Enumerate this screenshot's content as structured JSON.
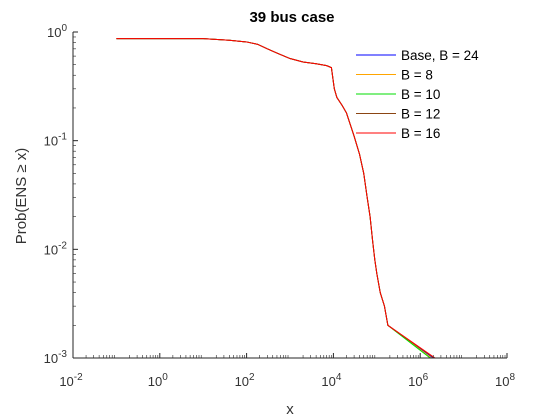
{
  "chart_data": {
    "type": "line",
    "title": "39 bus case",
    "xlabel": "x",
    "ylabel": "Prob(ENS ≥ x)",
    "x_scale": "log",
    "y_scale": "log",
    "xlim": [
      0.01,
      100000000
    ],
    "ylim": [
      0.001,
      1
    ],
    "x_ticks": [
      {
        "value": 0.01,
        "base": "10",
        "exp": "-2"
      },
      {
        "value": 1,
        "base": "10",
        "exp": "0"
      },
      {
        "value": 100,
        "base": "10",
        "exp": "2"
      },
      {
        "value": 10000,
        "base": "10",
        "exp": "4"
      },
      {
        "value": 1000000,
        "base": "10",
        "exp": "6"
      },
      {
        "value": 100000000,
        "base": "10",
        "exp": "8"
      }
    ],
    "y_ticks": [
      {
        "value": 0.001,
        "base": "10",
        "exp": "-3"
      },
      {
        "value": 0.01,
        "base": "10",
        "exp": "-2"
      },
      {
        "value": 0.1,
        "base": "10",
        "exp": "-1"
      },
      {
        "value": 1,
        "base": "10",
        "exp": "0"
      }
    ],
    "grid": false,
    "legend_position": "top-right",
    "series": [
      {
        "name": "Base, B = 24",
        "color": "#0000ff",
        "points": [
          [
            0.1,
            0.87
          ],
          [
            10,
            0.87
          ],
          [
            40,
            0.84
          ],
          [
            100,
            0.81
          ],
          [
            180,
            0.77
          ],
          [
            300,
            0.7
          ],
          [
            500,
            0.64
          ],
          [
            1000,
            0.57
          ],
          [
            2000,
            0.53
          ],
          [
            4000,
            0.51
          ],
          [
            7000,
            0.49
          ],
          [
            9000,
            0.47
          ],
          [
            10500,
            0.3
          ],
          [
            12000,
            0.25
          ],
          [
            16000,
            0.21
          ],
          [
            20000,
            0.18
          ],
          [
            30000,
            0.11
          ],
          [
            40000,
            0.075
          ],
          [
            50000,
            0.05
          ],
          [
            60000,
            0.03
          ],
          [
            70000,
            0.02
          ],
          [
            80000,
            0.012
          ],
          [
            90000,
            0.008
          ],
          [
            100000,
            0.006
          ],
          [
            120000,
            0.004
          ],
          [
            150000,
            0.003
          ],
          [
            180000,
            0.002
          ],
          [
            2000000,
            0.001
          ]
        ]
      },
      {
        "name": "B = 8",
        "color": "#ffa500",
        "points": [
          [
            0.1,
            0.87
          ],
          [
            10,
            0.87
          ],
          [
            40,
            0.84
          ],
          [
            100,
            0.81
          ],
          [
            180,
            0.77
          ],
          [
            300,
            0.7
          ],
          [
            500,
            0.64
          ],
          [
            1000,
            0.57
          ],
          [
            2000,
            0.53
          ],
          [
            4000,
            0.51
          ],
          [
            7000,
            0.49
          ],
          [
            9000,
            0.47
          ],
          [
            10500,
            0.3
          ],
          [
            12000,
            0.25
          ],
          [
            16000,
            0.21
          ],
          [
            20000,
            0.18
          ],
          [
            30000,
            0.11
          ],
          [
            40000,
            0.075
          ],
          [
            50000,
            0.05
          ],
          [
            60000,
            0.03
          ],
          [
            70000,
            0.02
          ],
          [
            80000,
            0.012
          ],
          [
            90000,
            0.008
          ],
          [
            100000,
            0.006
          ],
          [
            120000,
            0.004
          ],
          [
            150000,
            0.003
          ],
          [
            180000,
            0.002
          ],
          [
            1800000,
            0.001
          ]
        ]
      },
      {
        "name": "B = 10",
        "color": "#00dd00",
        "points": [
          [
            0.1,
            0.87
          ],
          [
            10,
            0.87
          ],
          [
            40,
            0.84
          ],
          [
            100,
            0.81
          ],
          [
            180,
            0.77
          ],
          [
            300,
            0.7
          ],
          [
            500,
            0.64
          ],
          [
            1000,
            0.57
          ],
          [
            2000,
            0.53
          ],
          [
            4000,
            0.51
          ],
          [
            7000,
            0.49
          ],
          [
            9000,
            0.47
          ],
          [
            10500,
            0.3
          ],
          [
            12000,
            0.25
          ],
          [
            16000,
            0.21
          ],
          [
            20000,
            0.18
          ],
          [
            30000,
            0.11
          ],
          [
            40000,
            0.075
          ],
          [
            50000,
            0.05
          ],
          [
            60000,
            0.03
          ],
          [
            70000,
            0.02
          ],
          [
            80000,
            0.012
          ],
          [
            90000,
            0.008
          ],
          [
            100000,
            0.006
          ],
          [
            120000,
            0.004
          ],
          [
            150000,
            0.003
          ],
          [
            180000,
            0.002
          ],
          [
            1700000,
            0.001
          ]
        ]
      },
      {
        "name": "B = 12",
        "color": "#8b4513",
        "points": [
          [
            0.1,
            0.87
          ],
          [
            10,
            0.87
          ],
          [
            40,
            0.84
          ],
          [
            100,
            0.81
          ],
          [
            180,
            0.77
          ],
          [
            300,
            0.7
          ],
          [
            500,
            0.64
          ],
          [
            1000,
            0.57
          ],
          [
            2000,
            0.53
          ],
          [
            4000,
            0.51
          ],
          [
            7000,
            0.49
          ],
          [
            9000,
            0.47
          ],
          [
            10500,
            0.3
          ],
          [
            12000,
            0.25
          ],
          [
            16000,
            0.21
          ],
          [
            20000,
            0.18
          ],
          [
            30000,
            0.11
          ],
          [
            40000,
            0.075
          ],
          [
            50000,
            0.05
          ],
          [
            60000,
            0.03
          ],
          [
            70000,
            0.02
          ],
          [
            80000,
            0.012
          ],
          [
            90000,
            0.008
          ],
          [
            100000,
            0.006
          ],
          [
            120000,
            0.004
          ],
          [
            150000,
            0.003
          ],
          [
            180000,
            0.002
          ],
          [
            2100000,
            0.001
          ]
        ]
      },
      {
        "name": "B = 16",
        "color": "#ff0000",
        "points": [
          [
            0.1,
            0.87
          ],
          [
            10,
            0.87
          ],
          [
            40,
            0.84
          ],
          [
            100,
            0.81
          ],
          [
            180,
            0.77
          ],
          [
            300,
            0.7
          ],
          [
            500,
            0.64
          ],
          [
            1000,
            0.57
          ],
          [
            2000,
            0.53
          ],
          [
            4000,
            0.51
          ],
          [
            7000,
            0.49
          ],
          [
            9000,
            0.47
          ],
          [
            10500,
            0.3
          ],
          [
            12000,
            0.25
          ],
          [
            16000,
            0.21
          ],
          [
            20000,
            0.18
          ],
          [
            30000,
            0.11
          ],
          [
            40000,
            0.075
          ],
          [
            50000,
            0.05
          ],
          [
            60000,
            0.03
          ],
          [
            70000,
            0.02
          ],
          [
            80000,
            0.012
          ],
          [
            90000,
            0.008
          ],
          [
            100000,
            0.006
          ],
          [
            120000,
            0.004
          ],
          [
            150000,
            0.003
          ],
          [
            180000,
            0.002
          ],
          [
            2200000,
            0.001
          ]
        ]
      }
    ]
  }
}
